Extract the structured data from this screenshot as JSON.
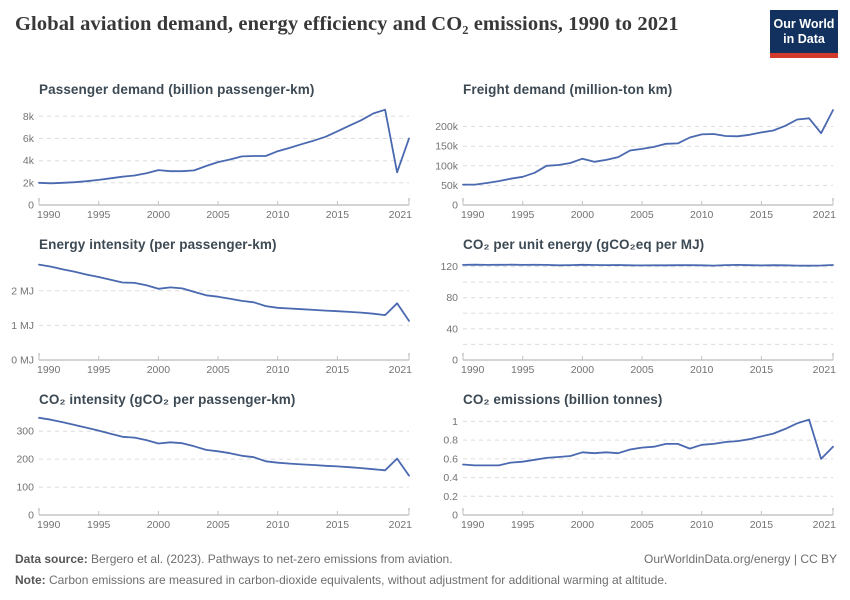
{
  "header": {
    "title": "Global aviation demand, energy efficiency and CO₂ emissions, 1990 to 2021",
    "logo": {
      "line1": "Our World",
      "line2": "in Data"
    }
  },
  "colors": {
    "line": "#4a69b0",
    "grid": "#dcdcdc",
    "axis": "#a9a9a9",
    "axis_tick": "#c2c2c2",
    "owid_blue": "#12315e",
    "owid_red": "#d23a2c"
  },
  "footer": {
    "source_label": "Data source:",
    "source_text": " Bergero et al. (2023). Pathways to net-zero emissions from aviation.",
    "link": "OurWorldinData.org/energy | CC BY",
    "note_label": "Note:",
    "note_text": " Carbon emissions are measured in carbon-dioxide equivalents, without adjustment for additional warming at altitude."
  },
  "chart_data": [
    {
      "type": "line",
      "title": "Passenger demand (billion passenger-km)",
      "ylabel": "billion passenger-km",
      "x": [
        1990,
        1991,
        1992,
        1993,
        1994,
        1995,
        1996,
        1997,
        1998,
        1999,
        2000,
        2001,
        2002,
        2003,
        2004,
        2005,
        2006,
        2007,
        2008,
        2009,
        2010,
        2011,
        2012,
        2013,
        2014,
        2015,
        2016,
        2017,
        2018,
        2019,
        2020,
        2021
      ],
      "values": [
        2000,
        1960,
        2000,
        2060,
        2150,
        2260,
        2410,
        2550,
        2660,
        2860,
        3150,
        3050,
        3050,
        3120,
        3520,
        3870,
        4100,
        4380,
        4420,
        4420,
        4850,
        5150,
        5480,
        5800,
        6150,
        6650,
        7150,
        7650,
        8250,
        8600,
        2950,
        6000
      ],
      "ylim": [
        0,
        9200
      ],
      "yticks": [
        {
          "v": 0,
          "label": "0"
        },
        {
          "v": 2000,
          "label": "2k"
        },
        {
          "v": 4000,
          "label": "4k"
        },
        {
          "v": 6000,
          "label": "6k"
        },
        {
          "v": 8000,
          "label": "8k"
        }
      ],
      "xticks": [
        {
          "v": 1990,
          "label": "1990"
        },
        {
          "v": 1995,
          "label": "1995"
        },
        {
          "v": 2000,
          "label": "2000"
        },
        {
          "v": 2005,
          "label": "2005"
        },
        {
          "v": 2010,
          "label": "2010"
        },
        {
          "v": 2015,
          "label": "2015"
        },
        {
          "v": 2021,
          "label": "2021"
        }
      ]
    },
    {
      "type": "line",
      "title": "Freight demand (million-ton km)",
      "ylabel": "million-ton km",
      "x": [
        1990,
        1991,
        1992,
        1993,
        1994,
        1995,
        1996,
        1997,
        1998,
        1999,
        2000,
        2001,
        2002,
        2003,
        2004,
        2005,
        2006,
        2007,
        2008,
        2009,
        2010,
        2011,
        2012,
        2013,
        2014,
        2015,
        2016,
        2017,
        2018,
        2019,
        2020,
        2021
      ],
      "values": [
        52000,
        52000,
        56000,
        61000,
        67000,
        72000,
        82000,
        100000,
        102000,
        107000,
        118000,
        110000,
        115000,
        122000,
        139000,
        143000,
        148000,
        156000,
        157000,
        172000,
        180000,
        181000,
        176000,
        175000,
        179000,
        185000,
        190000,
        202000,
        218000,
        221000,
        183000,
        242000
      ],
      "ylim": [
        0,
        260000
      ],
      "yticks": [
        {
          "v": 0,
          "label": "0"
        },
        {
          "v": 50000,
          "label": "50k"
        },
        {
          "v": 100000,
          "label": "100k"
        },
        {
          "v": 150000,
          "label": "150k"
        },
        {
          "v": 200000,
          "label": "200k"
        }
      ],
      "xticks": [
        {
          "v": 1990,
          "label": "1990"
        },
        {
          "v": 1995,
          "label": "1995"
        },
        {
          "v": 2000,
          "label": "2000"
        },
        {
          "v": 2005,
          "label": "2005"
        },
        {
          "v": 2010,
          "label": "2010"
        },
        {
          "v": 2015,
          "label": "2015"
        },
        {
          "v": 2021,
          "label": "2021"
        }
      ]
    },
    {
      "type": "line",
      "title": "Energy intensity (per passenger-km)",
      "ylabel": "MJ per passenger-km",
      "x": [
        1990,
        1991,
        1992,
        1993,
        1994,
        1995,
        1996,
        1997,
        1998,
        1999,
        2000,
        2001,
        2002,
        2003,
        2004,
        2005,
        2006,
        2007,
        2008,
        2009,
        2010,
        2011,
        2012,
        2013,
        2014,
        2015,
        2016,
        2017,
        2018,
        2019,
        2020,
        2021
      ],
      "values": [
        2.76,
        2.7,
        2.62,
        2.55,
        2.47,
        2.4,
        2.32,
        2.24,
        2.23,
        2.16,
        2.06,
        2.1,
        2.07,
        1.97,
        1.87,
        1.83,
        1.77,
        1.71,
        1.67,
        1.56,
        1.51,
        1.49,
        1.47,
        1.45,
        1.43,
        1.41,
        1.39,
        1.37,
        1.34,
        1.3,
        1.64,
        1.13
      ],
      "ylim": [
        0,
        2.95
      ],
      "yticks": [
        {
          "v": 0,
          "label": "0 MJ"
        },
        {
          "v": 1,
          "label": "1 MJ"
        },
        {
          "v": 2,
          "label": "2 MJ"
        }
      ],
      "xticks": [
        {
          "v": 1990,
          "label": "1990"
        },
        {
          "v": 1995,
          "label": "1995"
        },
        {
          "v": 2000,
          "label": "2000"
        },
        {
          "v": 2005,
          "label": "2005"
        },
        {
          "v": 2010,
          "label": "2010"
        },
        {
          "v": 2015,
          "label": "2015"
        },
        {
          "v": 2021,
          "label": "2021"
        }
      ]
    },
    {
      "type": "line",
      "title": "CO₂ per unit energy (gCO₂eq per MJ)",
      "ylabel": "gCO₂eq per MJ",
      "x": [
        1990,
        1991,
        1992,
        1993,
        1994,
        1995,
        1996,
        1997,
        1998,
        1999,
        2000,
        2001,
        2002,
        2003,
        2004,
        2005,
        2006,
        2007,
        2008,
        2009,
        2010,
        2011,
        2012,
        2013,
        2014,
        2015,
        2016,
        2017,
        2018,
        2019,
        2020,
        2021
      ],
      "values": [
        122.2,
        122.4,
        122.2,
        122.3,
        122.4,
        122.2,
        122.3,
        122.2,
        121.6,
        121.9,
        122.3,
        122.0,
        121.9,
        122.0,
        121.6,
        121.5,
        121.6,
        121.6,
        121.7,
        121.9,
        121.6,
        121.3,
        121.9,
        122.2,
        121.8,
        121.5,
        121.8,
        121.6,
        121.2,
        121.1,
        121.4,
        122.0
      ],
      "ylim": [
        0,
        131
      ],
      "yticks": [
        {
          "v": 0,
          "label": "0"
        },
        {
          "v": 20,
          "label": ""
        },
        {
          "v": 40,
          "label": "40"
        },
        {
          "v": 60,
          "label": ""
        },
        {
          "v": 80,
          "label": "80"
        },
        {
          "v": 100,
          "label": ""
        },
        {
          "v": 120,
          "label": "120"
        }
      ],
      "xticks": [
        {
          "v": 1990,
          "label": "1990"
        },
        {
          "v": 1995,
          "label": "1995"
        },
        {
          "v": 2000,
          "label": "2000"
        },
        {
          "v": 2005,
          "label": "2005"
        },
        {
          "v": 2010,
          "label": "2010"
        },
        {
          "v": 2015,
          "label": "2015"
        },
        {
          "v": 2021,
          "label": "2021"
        }
      ]
    },
    {
      "type": "line",
      "title": "CO₂ intensity (gCO₂ per passenger-km)",
      "ylabel": "gCO₂ per passenger-km",
      "x": [
        1990,
        1991,
        1992,
        1993,
        1994,
        1995,
        1996,
        1997,
        1998,
        1999,
        2000,
        2001,
        2002,
        2003,
        2004,
        2005,
        2006,
        2007,
        2008,
        2009,
        2010,
        2011,
        2012,
        2013,
        2014,
        2015,
        2016,
        2017,
        2018,
        2019,
        2020,
        2021
      ],
      "values": [
        348,
        341,
        332,
        322,
        312,
        302,
        291,
        280,
        277,
        268,
        256,
        260,
        257,
        246,
        233,
        228,
        221,
        212,
        207,
        192,
        187,
        184,
        181,
        179,
        176,
        174,
        171,
        168,
        164,
        160,
        202,
        141
      ],
      "ylim": [
        0,
        365
      ],
      "yticks": [
        {
          "v": 0,
          "label": "0"
        },
        {
          "v": 100,
          "label": "100"
        },
        {
          "v": 200,
          "label": "200"
        },
        {
          "v": 300,
          "label": "300"
        }
      ],
      "xticks": [
        {
          "v": 1990,
          "label": "1990"
        },
        {
          "v": 1995,
          "label": "1995"
        },
        {
          "v": 2000,
          "label": "2000"
        },
        {
          "v": 2005,
          "label": "2005"
        },
        {
          "v": 2010,
          "label": "2010"
        },
        {
          "v": 2015,
          "label": "2015"
        },
        {
          "v": 2021,
          "label": "2021"
        }
      ]
    },
    {
      "type": "line",
      "title": "CO₂ emissions (billion tonnes)",
      "ylabel": "billion tonnes",
      "x": [
        1990,
        1991,
        1992,
        1993,
        1994,
        1995,
        1996,
        1997,
        1998,
        1999,
        2000,
        2001,
        2002,
        2003,
        2004,
        2005,
        2006,
        2007,
        2008,
        2009,
        2010,
        2011,
        2012,
        2013,
        2014,
        2015,
        2016,
        2017,
        2018,
        2019,
        2020,
        2021
      ],
      "values": [
        0.54,
        0.53,
        0.53,
        0.53,
        0.56,
        0.57,
        0.59,
        0.61,
        0.62,
        0.63,
        0.67,
        0.66,
        0.67,
        0.66,
        0.7,
        0.72,
        0.73,
        0.76,
        0.76,
        0.71,
        0.75,
        0.76,
        0.78,
        0.79,
        0.81,
        0.84,
        0.87,
        0.92,
        0.98,
        1.02,
        0.6,
        0.73
      ],
      "ylim": [
        0,
        1.09
      ],
      "yticks": [
        {
          "v": 0,
          "label": "0"
        },
        {
          "v": 0.2,
          "label": "0.2"
        },
        {
          "v": 0.4,
          "label": "0.4"
        },
        {
          "v": 0.6,
          "label": "0.6"
        },
        {
          "v": 0.8,
          "label": "0.8"
        },
        {
          "v": 1,
          "label": "1"
        }
      ],
      "xticks": [
        {
          "v": 1990,
          "label": "1990"
        },
        {
          "v": 1995,
          "label": "1995"
        },
        {
          "v": 2000,
          "label": "2000"
        },
        {
          "v": 2005,
          "label": "2005"
        },
        {
          "v": 2010,
          "label": "2010"
        },
        {
          "v": 2015,
          "label": "2015"
        },
        {
          "v": 2021,
          "label": "2021"
        }
      ]
    }
  ]
}
